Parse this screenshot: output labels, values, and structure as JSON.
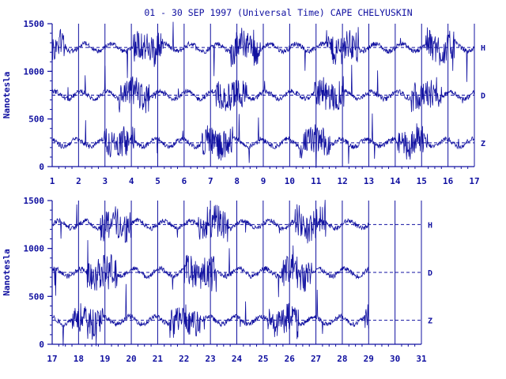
{
  "title": "01 - 30 SEP 1997 (Universal Time) CAPE CHELYUSKIN",
  "colors": {
    "ink": "#1010a0",
    "background": "#ffffff"
  },
  "chart_data": [
    {
      "type": "line",
      "ylabel": "Nanotesla",
      "ylim": [
        0,
        1500
      ],
      "yticks": [
        "0",
        "500",
        "1000",
        "1500"
      ],
      "xlim": [
        1,
        17
      ],
      "xticks": [
        "1",
        "2",
        "3",
        "4",
        "5",
        "6",
        "7",
        "8",
        "9",
        "10",
        "11",
        "12",
        "13",
        "14",
        "15",
        "16",
        "17"
      ],
      "grid": "vertical day lines",
      "series": [
        {
          "name": "H",
          "baseline": 1250
        },
        {
          "name": "D",
          "baseline": 750
        },
        {
          "name": "Z",
          "baseline": 250
        }
      ]
    },
    {
      "type": "line",
      "ylabel": "Nanotesla",
      "ylim": [
        0,
        1500
      ],
      "yticks": [
        "0",
        "500",
        "1000",
        "1500"
      ],
      "xlim": [
        17,
        31
      ],
      "xticks": [
        "17",
        "18",
        "19",
        "20",
        "21",
        "22",
        "23",
        "24",
        "25",
        "26",
        "27",
        "28",
        "29",
        "30",
        "31"
      ],
      "grid": "vertical day lines",
      "data_end_day": 29,
      "series": [
        {
          "name": "H",
          "baseline": 1250
        },
        {
          "name": "D",
          "baseline": 750
        },
        {
          "name": "Z",
          "baseline": 250
        }
      ]
    }
  ]
}
